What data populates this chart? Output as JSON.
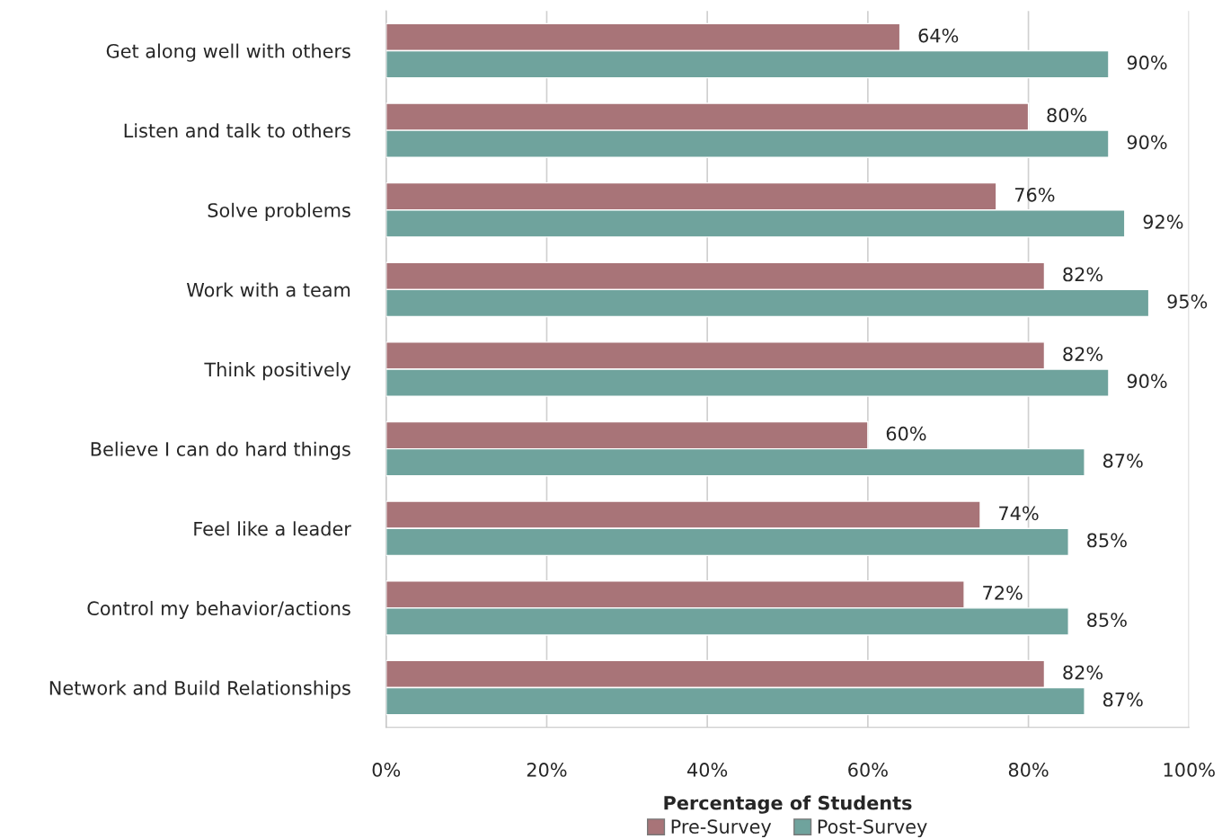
{
  "chart_data": {
    "type": "bar",
    "orientation": "horizontal",
    "xlabel": "Percentage of Students",
    "categories": [
      "Get along well with others",
      "Listen and talk to others",
      "Solve problems",
      "Work with a team",
      "Think positively",
      "Believe I can do hard things",
      "Feel like a leader",
      "Control my behavior/actions",
      "Network and Build Relationships"
    ],
    "series": [
      {
        "name": "Pre-Survey",
        "color": "#a87478",
        "values": [
          64,
          80,
          76,
          82,
          82,
          60,
          74,
          72,
          82
        ],
        "value_labels": [
          "64%",
          "80%",
          "76%",
          "82%",
          "82%",
          "60%",
          "74%",
          "72%",
          "82%"
        ]
      },
      {
        "name": "Post-Survey",
        "color": "#6fa39d",
        "values": [
          90,
          90,
          92,
          95,
          90,
          87,
          85,
          85,
          87
        ],
        "value_labels": [
          "90%",
          "90%",
          "92%",
          "95%",
          "90%",
          "87%",
          "85%",
          "85%",
          "87%"
        ]
      }
    ],
    "xlim": [
      0,
      100
    ],
    "xticks": [
      {
        "value": 0,
        "label": "0%"
      },
      {
        "value": 20,
        "label": "20%"
      },
      {
        "value": 40,
        "label": "40%"
      },
      {
        "value": 60,
        "label": "60%"
      },
      {
        "value": 80,
        "label": "80%"
      },
      {
        "value": 100,
        "label": "100%"
      }
    ],
    "grid": "x",
    "legend": "bottom"
  }
}
